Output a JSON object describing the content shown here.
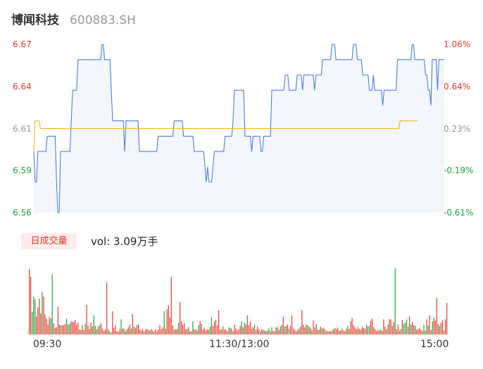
{
  "header": {
    "name": "博闻科技",
    "code": "600883.SH"
  },
  "colors": {
    "up": "#e8392b",
    "down": "#1aa53a",
    "neutral": "#999999",
    "price_line": "#4a7ee8",
    "avg_line": "#f5b21d",
    "area_fill": "#f3f6fc"
  },
  "volume_panel": {
    "badge": "日成交量",
    "label": "vol: 3.09万手"
  },
  "chart_data": [
    {
      "type": "line",
      "title": "",
      "x_range": [
        "09:30",
        "15:00"
      ],
      "x_ticks": [
        "09:30",
        "11:30/13:00",
        "15:00"
      ],
      "ylim": [
        6.56,
        6.67
      ],
      "y_ticks": [
        {
          "price": "6.67",
          "pct": "1.06%",
          "color": "#e8392b"
        },
        {
          "price": "6.64",
          "pct": "0.64%",
          "color": "#e8392b"
        },
        {
          "price": "6.61",
          "pct": "0.23%",
          "color": "#999999"
        },
        {
          "price": "6.59",
          "pct": "-0.19%",
          "color": "#1aa53a"
        },
        {
          "price": "6.56",
          "pct": "-0.61%",
          "color": "#1aa53a"
        }
      ],
      "series": [
        {
          "values": [
            6.6,
            6.58,
            6.58,
            6.6,
            6.6,
            6.6,
            6.6,
            6.6,
            6.6,
            6.6,
            6.61,
            6.61,
            6.61,
            6.61,
            6.61,
            6.61,
            6.61,
            6.58,
            6.56,
            6.56,
            6.6,
            6.6,
            6.6,
            6.6,
            6.6,
            6.6,
            6.6,
            6.6,
            6.62,
            6.64,
            6.64,
            6.64,
            6.64,
            6.66,
            6.66,
            6.66,
            6.66,
            6.66,
            6.66,
            6.66,
            6.66,
            6.66,
            6.66,
            6.66,
            6.66,
            6.66,
            6.66,
            6.66,
            6.66,
            6.66,
            6.66,
            6.67,
            6.67,
            6.66,
            6.66,
            6.66,
            6.66,
            6.66,
            6.64,
            6.62,
            6.62,
            6.62,
            6.62,
            6.62,
            6.62,
            6.62,
            6.62,
            6.62,
            6.6,
            6.62,
            6.62,
            6.62,
            6.62,
            6.62,
            6.62,
            6.62,
            6.62,
            6.62,
            6.62,
            6.6,
            6.6,
            6.6,
            6.6,
            6.6,
            6.6,
            6.6,
            6.6,
            6.6,
            6.6,
            6.6,
            6.6,
            6.6,
            6.6,
            6.61,
            6.61,
            6.61,
            6.61,
            6.61,
            6.61,
            6.61,
            6.61,
            6.61,
            6.61,
            6.61,
            6.61,
            6.62,
            6.62,
            6.62,
            6.62,
            6.62,
            6.62,
            6.62,
            6.61,
            6.61,
            6.61,
            6.61,
            6.61,
            6.61,
            6.61,
            6.61,
            6.6,
            6.6,
            6.6,
            6.6,
            6.6,
            6.6,
            6.6,
            6.6,
            6.59,
            6.58,
            6.59,
            6.58,
            6.58,
            6.58,
            6.59,
            6.6,
            6.6,
            6.6,
            6.6,
            6.6,
            6.6,
            6.6,
            6.6,
            6.61,
            6.61,
            6.61,
            6.61,
            6.61,
            6.61,
            6.62,
            6.64,
            6.64,
            6.64,
            6.64,
            6.64,
            6.64,
            6.64,
            6.64,
            6.61,
            6.61,
            6.61,
            6.61,
            6.61,
            6.6,
            6.61,
            6.61,
            6.61,
            6.61,
            6.61,
            6.61,
            6.6,
            6.6,
            6.61,
            6.61,
            6.61,
            6.61,
            6.61,
            6.61,
            6.64,
            6.64,
            6.64,
            6.64,
            6.64,
            6.64,
            6.64,
            6.64,
            6.64,
            6.64,
            6.65,
            6.65,
            6.65,
            6.64,
            6.64,
            6.64,
            6.64,
            6.64,
            6.64,
            6.65,
            6.65,
            6.65,
            6.65,
            6.64,
            6.65,
            6.65,
            6.65,
            6.65,
            6.65,
            6.65,
            6.65,
            6.65,
            6.64,
            6.65,
            6.65,
            6.65,
            6.65,
            6.65,
            6.66,
            6.66,
            6.66,
            6.66,
            6.66,
            6.66,
            6.66,
            6.67,
            6.67,
            6.67,
            6.66,
            6.66,
            6.66,
            6.66,
            6.66,
            6.66,
            6.66,
            6.66,
            6.66,
            6.66,
            6.66,
            6.66,
            6.66,
            6.67,
            6.67,
            6.67,
            6.66,
            6.66,
            6.66,
            6.66,
            6.65,
            6.65,
            6.65,
            6.65,
            6.65,
            6.64,
            6.64,
            6.64,
            6.65,
            6.64,
            6.64,
            6.64,
            6.64,
            6.64,
            6.64,
            6.63,
            6.64,
            6.64,
            6.64,
            6.64,
            6.64,
            6.64,
            6.64,
            6.64,
            6.64,
            6.64,
            6.66,
            6.66,
            6.66,
            6.66,
            6.66,
            6.66,
            6.66,
            6.66,
            6.66,
            6.66,
            6.66,
            6.67,
            6.67,
            6.66,
            6.66,
            6.66,
            6.66,
            6.66,
            6.66,
            6.66,
            6.66,
            6.65,
            6.65,
            6.64,
            6.64,
            6.63,
            6.66,
            6.66,
            6.66,
            6.66,
            6.64,
            6.66,
            6.66,
            6.66,
            6.66,
            6.66
          ]
        },
        {
          "name": "avg",
          "values": [
            6.6,
            6.62,
            6.62,
            6.62,
            6.62,
            6.615,
            6.615,
            6.615,
            6.615,
            6.615,
            6.615,
            6.615,
            6.615,
            6.615,
            6.615,
            6.615,
            6.615,
            6.615,
            6.615,
            6.615,
            6.615,
            6.615,
            6.615,
            6.615,
            6.615,
            6.615,
            6.615,
            6.615,
            6.615,
            6.615,
            6.615,
            6.615,
            6.615,
            6.615,
            6.615,
            6.615,
            6.615,
            6.615,
            6.615,
            6.615,
            6.615,
            6.615,
            6.615,
            6.615,
            6.615,
            6.615,
            6.615,
            6.615,
            6.615,
            6.615,
            6.615,
            6.615,
            6.615,
            6.615,
            6.615,
            6.615,
            6.615,
            6.615,
            6.615,
            6.615,
            6.615,
            6.615,
            6.615,
            6.615,
            6.615,
            6.615,
            6.615,
            6.615,
            6.615,
            6.615,
            6.615,
            6.615,
            6.615,
            6.615,
            6.615,
            6.615,
            6.615,
            6.615,
            6.615,
            6.615,
            6.615,
            6.615,
            6.615,
            6.615,
            6.615,
            6.615,
            6.615,
            6.615,
            6.615,
            6.615,
            6.615,
            6.615,
            6.615,
            6.615,
            6.615,
            6.615,
            6.615,
            6.615,
            6.615,
            6.615,
            6.615,
            6.615,
            6.615,
            6.615,
            6.615,
            6.615,
            6.615,
            6.615,
            6.615,
            6.615,
            6.615,
            6.615,
            6.615,
            6.615,
            6.615,
            6.615,
            6.615,
            6.615,
            6.615,
            6.615,
            6.615,
            6.615,
            6.615,
            6.615,
            6.615,
            6.615,
            6.615,
            6.615,
            6.615,
            6.615,
            6.615,
            6.615,
            6.615,
            6.615,
            6.615,
            6.615,
            6.615,
            6.615,
            6.615,
            6.615,
            6.615,
            6.615,
            6.615,
            6.615,
            6.615,
            6.615,
            6.615,
            6.615,
            6.615,
            6.615,
            6.615,
            6.615,
            6.615,
            6.615,
            6.615,
            6.615,
            6.615,
            6.615,
            6.615,
            6.615,
            6.615,
            6.615,
            6.615,
            6.615,
            6.615,
            6.615,
            6.615,
            6.615,
            6.615,
            6.615,
            6.615,
            6.615,
            6.615,
            6.615,
            6.615,
            6.615,
            6.615,
            6.615,
            6.615,
            6.615,
            6.615,
            6.615,
            6.615,
            6.615,
            6.615,
            6.615,
            6.615,
            6.615,
            6.615,
            6.615,
            6.615,
            6.615,
            6.615,
            6.615,
            6.615,
            6.615,
            6.615,
            6.615,
            6.615,
            6.615,
            6.615,
            6.615,
            6.615,
            6.615,
            6.615,
            6.615,
            6.615,
            6.615,
            6.615,
            6.615,
            6.615,
            6.615,
            6.615,
            6.615,
            6.615,
            6.615,
            6.615,
            6.615,
            6.615,
            6.615,
            6.615,
            6.615,
            6.615,
            6.615,
            6.615,
            6.615,
            6.615,
            6.615,
            6.615,
            6.615,
            6.615,
            6.615,
            6.615,
            6.615,
            6.615,
            6.615,
            6.615,
            6.615,
            6.615,
            6.615,
            6.615,
            6.615,
            6.615,
            6.615,
            6.615,
            6.615,
            6.615,
            6.615,
            6.615,
            6.615,
            6.615,
            6.615,
            6.615,
            6.615,
            6.615,
            6.615,
            6.615,
            6.615,
            6.615,
            6.615,
            6.615,
            6.615,
            6.615,
            6.615,
            6.615,
            6.615,
            6.615,
            6.615,
            6.615,
            6.615,
            6.615,
            6.615,
            6.615,
            6.615,
            6.62,
            6.62,
            6.62,
            6.62,
            6.62,
            6.62,
            6.62,
            6.62,
            6.62,
            6.62,
            6.62,
            6.62,
            6.62,
            6.62
          ]
        }
      ]
    },
    {
      "type": "bar",
      "title": "",
      "ylim": [
        0,
        1
      ],
      "series": [
        {
          "values": [
            0.99,
            0.87,
            0.34,
            0.57,
            0.53,
            0.27,
            0.41,
            0.54,
            0.32,
            0.64,
            0.57,
            0.3,
            0.24,
            0.15,
            0.27,
            0.24,
            0.91,
            0.17,
            0.1,
            0.11,
            0.42,
            0.15,
            0.14,
            0.14,
            0.14,
            0.16,
            0.24,
            0.15,
            0.16,
            0.19,
            0.19,
            0.19,
            0.22,
            0.15,
            0.18,
            0.08,
            0.07,
            0.14,
            0.07,
            0.16,
            0.45,
            0.13,
            0.08,
            0.18,
            0.12,
            0.29,
            0.13,
            0.08,
            0.12,
            0.14,
            0.17,
            0.09,
            0.05,
            0.08,
            0.79,
            0.08,
            0.05,
            0.03,
            0.35,
            0.1,
            0.14,
            0.05,
            0.04,
            0.08,
            0.23,
            0.09,
            0.09,
            0.05,
            0.08,
            0.11,
            0.15,
            0.09,
            0.31,
            0.12,
            0.1,
            0.14,
            0.15,
            0.08,
            0.06,
            0.08,
            0.04,
            0.08,
            0.08,
            0.07,
            0.06,
            0.08,
            0.06,
            0.04,
            0.08,
            0.05,
            0.08,
            0.14,
            0.08,
            0.11,
            0.35,
            0.09,
            0.38,
            0.44,
            0.26,
            0.87,
            0.14,
            0.07,
            0.08,
            0.08,
            0.18,
            0.49,
            0.2,
            0.15,
            0.18,
            0.08,
            0.08,
            0.11,
            0.05,
            0.05,
            0.2,
            0.08,
            0.08,
            0.06,
            0.14,
            0.2,
            0.16,
            0.07,
            0.1,
            0.06,
            0.08,
            0.07,
            0.12,
            0.26,
            0.13,
            0.19,
            0.22,
            0.14,
            0.37,
            0.08,
            0.07,
            0.12,
            0.07,
            0.08,
            0.05,
            0.11,
            0.1,
            0.09,
            0.05,
            0.15,
            0.09,
            0.06,
            0.08,
            0.13,
            0.2,
            0.11,
            0.18,
            0.15,
            0.29,
            0.14,
            0.2,
            0.09,
            0.11,
            0.15,
            0.07,
            0.12,
            0.08,
            0.05,
            0.08,
            0.07,
            0.06,
            0.05,
            0.06,
            0.09,
            0.05,
            0.11,
            0.05,
            0.05,
            0.11,
            0.11,
            0.07,
            0.12,
            0.15,
            0.27,
            0.12,
            0.13,
            0.15,
            0.09,
            0.13,
            0.29,
            0.09,
            0.07,
            0.05,
            0.07,
            0.09,
            0.12,
            0.37,
            0.15,
            0.11,
            0.15,
            0.14,
            0.12,
            0.1,
            0.06,
            0.21,
            0.11,
            0.16,
            0.07,
            0.07,
            0.12,
            0.09,
            0.1,
            0.08,
            0.05,
            0.05,
            0.05,
            0.05,
            0.06,
            0.08,
            0.1,
            0.08,
            0.11,
            0.06,
            0.06,
            0.09,
            0.06,
            0.05,
            0.09,
            0.13,
            0.08,
            0.2,
            0.25,
            0.14,
            0.11,
            0.08,
            0.11,
            0.08,
            0.07,
            0.12,
            0.1,
            0.09,
            0.15,
            0.12,
            0.13,
            0.21,
            0.24,
            0.11,
            0.08,
            0.05,
            0.07,
            0.06,
            0.08,
            0.05,
            0.23,
            0.12,
            0.08,
            0.15,
            0.23,
            0.23,
            0.13,
            0.19,
            1.0,
            0.08,
            0.15,
            0.06,
            0.08,
            0.22,
            0.16,
            0.18,
            0.23,
            0.12,
            0.27,
            0.15,
            0.19,
            0.14,
            0.13,
            0.07,
            0.08,
            0.1,
            0.07,
            0.05,
            0.15,
            0.06,
            0.23,
            0.14,
            0.29,
            0.07,
            0.2,
            0.26,
            0.21,
            0.55,
            0.16,
            0.13,
            0.18,
            0.22,
            0.06,
            0.23,
            0.48
          ],
          "colors": "rrgggrrrrgrrrrrggrrrrgrrrrgrgrrrrrrgrrrgrrrrrggrgrrrrrrgrgrrrrrrgrrgrgrrrgrrrrrrgrrgrrrgrrrrrrgrrrrrrgrrgrrrrrgrrrgrrrgrrrrrrgrgrrrrrrgrrrrgrgrrrrrrgrgrrrrrrgrrrrgrgrrgrgrrgrrrgrgrrgrrrrrrgrrrrgrgrrrrgrrrgrrgrrrrrgrrrrgrrrgrrrrrgrrrrrrgrgrrrrrrrgrrrrgrrrrgrrrrrgggrrgrrgrrrrrggrgrrgrrrrgrrrrrgg"
        }
      ]
    }
  ]
}
